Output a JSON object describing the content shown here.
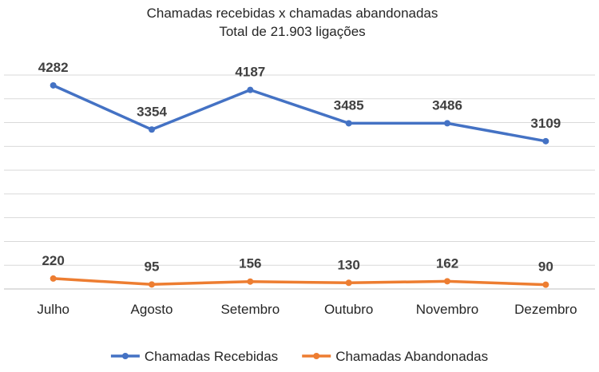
{
  "chart_data": {
    "type": "line",
    "title": "Chamadas recebidas x chamadas abandonadas",
    "subtitle": "Total de 21.903 ligações",
    "categories": [
      "Julho",
      "Agosto",
      "Setembro",
      "Outubro",
      "Novembro",
      "Dezembro"
    ],
    "series": [
      {
        "name": "Chamadas Recebidas",
        "color": "#4472C4",
        "values": [
          4282,
          3354,
          4187,
          3485,
          3486,
          3109
        ]
      },
      {
        "name": "Chamadas Abandonadas",
        "color": "#ED7D31",
        "values": [
          220,
          95,
          156,
          130,
          162,
          90
        ]
      }
    ],
    "ylim": [
      0,
      4500
    ],
    "grid": true,
    "legend_position": "bottom",
    "data_labels": true
  }
}
